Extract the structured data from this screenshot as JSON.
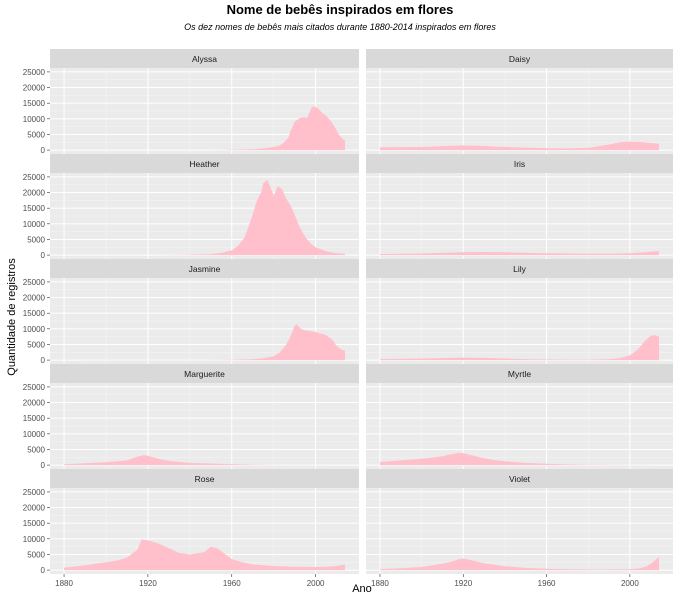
{
  "chart_data": {
    "type": "area",
    "title": "Nome de bebês inspirados em flores",
    "subtitle": "Os dez nomes de bebês mais citados durante 1880-2014 inspirados em flores",
    "xlabel": "Ano",
    "ylabel": "Quantidade de registros",
    "xlim": [
      1880,
      2014
    ],
    "ylim": [
      0,
      25000
    ],
    "x_ticks": [
      "1880",
      "1920",
      "1960",
      "2000"
    ],
    "y_ticks": [
      "0",
      "5000",
      "10000",
      "15000",
      "20000",
      "25000"
    ],
    "fill_color": "#ffc0cb",
    "panel_background": "#ebebeb",
    "strip_background": "#d9d9d9",
    "grid": true,
    "facets": "wrap-2-columns",
    "series": [
      {
        "name": "Alyssa",
        "x": [
          1880,
          1920,
          1940,
          1950,
          1955,
          1960,
          1965,
          1970,
          1975,
          1980,
          1983,
          1985,
          1987,
          1988,
          1990,
          1992,
          1994,
          1996,
          1998,
          1999,
          2001,
          2003,
          2005,
          2007,
          2009,
          2011,
          2013,
          2014
        ],
        "values": [
          0,
          0,
          0,
          10,
          30,
          80,
          150,
          250,
          500,
          1000,
          1500,
          2500,
          4000,
          6000,
          9000,
          10000,
          10500,
          10300,
          13500,
          14000,
          13500,
          12000,
          11000,
          9500,
          7500,
          5000,
          3500,
          3000
        ]
      },
      {
        "name": "Daisy",
        "x": [
          1880,
          1900,
          1915,
          1920,
          1930,
          1940,
          1950,
          1960,
          1970,
          1980,
          1985,
          1990,
          1995,
          2000,
          2005,
          2010,
          2014
        ],
        "values": [
          900,
          1000,
          1400,
          1500,
          1300,
          1000,
          800,
          600,
          500,
          700,
          1200,
          1800,
          2500,
          2700,
          2600,
          2300,
          2000
        ]
      },
      {
        "name": "Heather",
        "x": [
          1880,
          1925,
          1940,
          1950,
          1955,
          1960,
          1963,
          1966,
          1968,
          1970,
          1972,
          1974,
          1975,
          1977,
          1978,
          1980,
          1982,
          1984,
          1986,
          1988,
          1990,
          1992,
          1994,
          1996,
          1998,
          2000,
          2005,
          2010,
          2014
        ],
        "values": [
          0,
          10,
          100,
          300,
          700,
          1500,
          3000,
          5500,
          9000,
          13000,
          17500,
          20000,
          23000,
          24000,
          22500,
          19000,
          22000,
          21000,
          18000,
          16000,
          13000,
          9500,
          7000,
          5000,
          3500,
          2500,
          1200,
          600,
          400
        ]
      },
      {
        "name": "Iris",
        "x": [
          1880,
          1900,
          1920,
          1930,
          1940,
          1950,
          1960,
          1970,
          1980,
          1990,
          2000,
          2005,
          2010,
          2014
        ],
        "values": [
          300,
          500,
          900,
          1000,
          900,
          700,
          600,
          500,
          400,
          400,
          600,
          800,
          1100,
          1300
        ]
      },
      {
        "name": "Jasmine",
        "x": [
          1880,
          1950,
          1960,
          1970,
          1975,
          1980,
          1983,
          1986,
          1988,
          1990,
          1991,
          1993,
          1995,
          2000,
          2005,
          2008,
          2010,
          2012,
          2014
        ],
        "values": [
          0,
          20,
          100,
          300,
          600,
          1200,
          2500,
          5000,
          7500,
          11000,
          11500,
          10000,
          9500,
          9000,
          8000,
          6500,
          4500,
          3500,
          3000
        ]
      },
      {
        "name": "Lily",
        "x": [
          1880,
          1900,
          1920,
          1930,
          1940,
          1950,
          1960,
          1970,
          1980,
          1990,
          1995,
          2000,
          2004,
          2007,
          2010,
          2012,
          2014
        ],
        "values": [
          300,
          500,
          800,
          700,
          500,
          300,
          200,
          150,
          150,
          300,
          600,
          1500,
          3500,
          6000,
          7800,
          8000,
          7500
        ]
      },
      {
        "name": "Marguerite",
        "x": [
          1880,
          1890,
          1900,
          1910,
          1915,
          1918,
          1920,
          1925,
          1930,
          1940,
          1950,
          1960,
          1970,
          1980,
          2014
        ],
        "values": [
          300,
          600,
          900,
          1500,
          2700,
          3200,
          3000,
          2000,
          1300,
          700,
          500,
          300,
          100,
          30,
          0
        ]
      },
      {
        "name": "Myrtle",
        "x": [
          1880,
          1890,
          1900,
          1910,
          1915,
          1918,
          1920,
          1925,
          1930,
          1935,
          1940,
          1950,
          1960,
          1970,
          1980,
          1990,
          2000,
          2014
        ],
        "values": [
          1000,
          1500,
          2000,
          2800,
          3600,
          4000,
          3800,
          3000,
          2200,
          1600,
          1200,
          700,
          400,
          200,
          100,
          50,
          30,
          10
        ]
      },
      {
        "name": "Rose",
        "x": [
          1880,
          1890,
          1900,
          1905,
          1910,
          1915,
          1917,
          1920,
          1925,
          1930,
          1935,
          1940,
          1945,
          1947,
          1950,
          1953,
          1955,
          1958,
          1960,
          1965,
          1970,
          1980,
          1990,
          2000,
          2005,
          2010,
          2014
        ],
        "values": [
          800,
          1500,
          2500,
          3000,
          4000,
          6500,
          9800,
          9500,
          8500,
          7000,
          5500,
          5000,
          5500,
          5800,
          7500,
          7000,
          6000,
          4500,
          3500,
          2500,
          1800,
          1300,
          1100,
          1000,
          1100,
          1300,
          1800
        ]
      },
      {
        "name": "Violet",
        "x": [
          1880,
          1890,
          1900,
          1910,
          1915,
          1918,
          1920,
          1925,
          1930,
          1940,
          1950,
          1960,
          1970,
          1980,
          1990,
          2000,
          2005,
          2008,
          2010,
          2012,
          2014
        ],
        "values": [
          300,
          600,
          1000,
          2000,
          2800,
          3500,
          3700,
          3000,
          2200,
          1200,
          700,
          400,
          250,
          200,
          200,
          300,
          600,
          1200,
          2000,
          3000,
          4300
        ]
      }
    ]
  }
}
